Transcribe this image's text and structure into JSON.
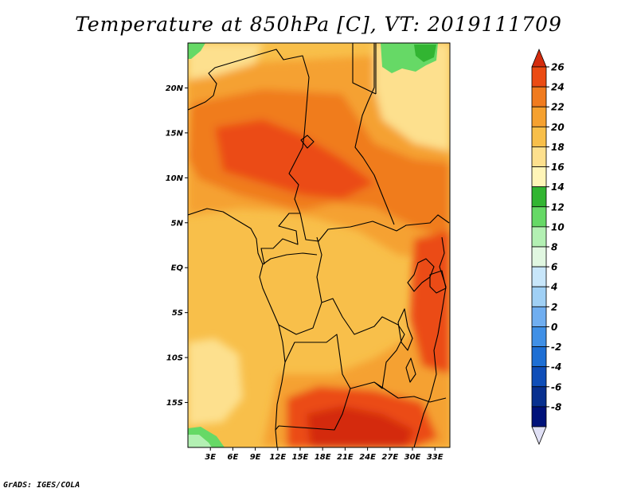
{
  "title": "Temperature at 850hPa [C], VT: 2019111709",
  "credit": "GrADS: IGES/COLA",
  "map": {
    "lat_labels": [
      "20N",
      "15N",
      "10N",
      "5N",
      "EQ",
      "5S",
      "10S",
      "15S"
    ],
    "lat_values": [
      20,
      15,
      10,
      5,
      0,
      -5,
      -10,
      -15
    ],
    "lon_labels": [
      "3E",
      "6E",
      "9E",
      "12E",
      "15E",
      "18E",
      "21E",
      "24E",
      "27E",
      "30E",
      "33E"
    ],
    "lon_values": [
      3,
      6,
      9,
      12,
      15,
      18,
      21,
      24,
      27,
      30,
      33
    ],
    "lon_range": [
      0,
      35
    ],
    "lat_range": [
      -20,
      25
    ]
  },
  "colorbar": {
    "labels": [
      "26",
      "24",
      "22",
      "20",
      "18",
      "16",
      "14",
      "12",
      "10",
      "8",
      "6",
      "4",
      "2",
      "0",
      "-2",
      "-4",
      "-6",
      "-8"
    ],
    "colors": [
      "#d42c0e",
      "#eb4b13",
      "#f07b1f",
      "#f5a130",
      "#f8bf4a",
      "#fde08e",
      "#fff5b8",
      "#32b532",
      "#66d966",
      "#b3f0b3",
      "#e1f7e1",
      "#c8e6fa",
      "#a0d0f5",
      "#70aef0",
      "#4090e6",
      "#1e6fd4",
      "#0f4eb8",
      "#08308f",
      "#00127a",
      "#e0e0f5"
    ]
  }
}
